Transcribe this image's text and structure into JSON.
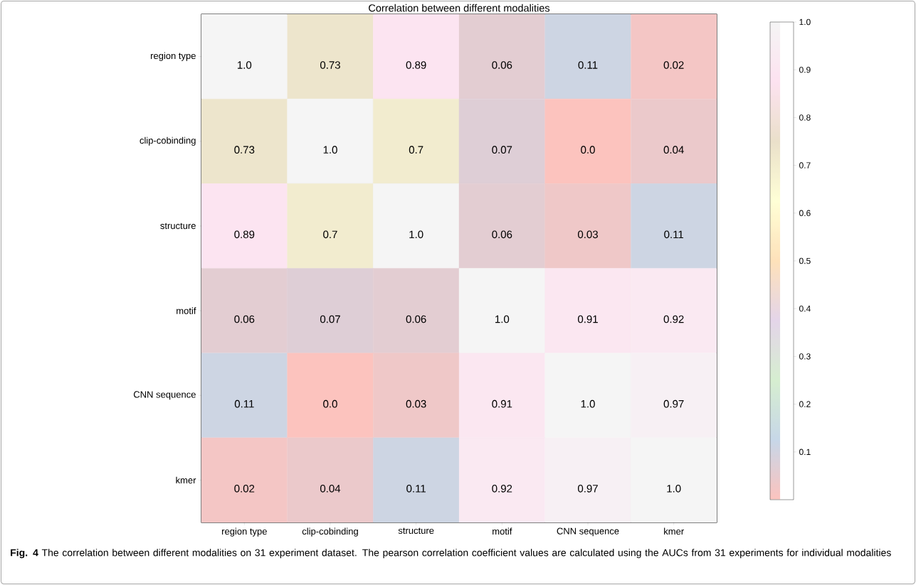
{
  "chart_data": {
    "type": "heatmap",
    "title": "Correlation between different modalities",
    "categories": [
      "region type",
      "clip-cobinding",
      "structure",
      "motif",
      "CNN sequence",
      "kmer"
    ],
    "y_categories": [
      "region type",
      "clip-cobinding",
      "structure",
      "motif",
      "CNN sequence",
      "kmer"
    ],
    "cells": [
      [
        1.0,
        0.73,
        0.89,
        0.06,
        0.11,
        0.02
      ],
      [
        0.73,
        1.0,
        0.7,
        0.07,
        0.0,
        0.04
      ],
      [
        0.89,
        0.7,
        1.0,
        0.06,
        0.03,
        0.11
      ],
      [
        0.06,
        0.07,
        0.06,
        1.0,
        0.91,
        0.92
      ],
      [
        0.11,
        0.0,
        0.03,
        0.91,
        1.0,
        0.97
      ],
      [
        0.02,
        0.04,
        0.11,
        0.92,
        0.97,
        1.0
      ]
    ],
    "cell_labels": [
      [
        "1.0",
        "0.73",
        "0.89",
        "0.06",
        "0.11",
        "0.02"
      ],
      [
        "0.73",
        "1.0",
        "0.7",
        "0.07",
        "0.0",
        "0.04"
      ],
      [
        "0.89",
        "0.7",
        "1.0",
        "0.06",
        "0.03",
        "0.11"
      ],
      [
        "0.06",
        "0.07",
        "0.06",
        "1.0",
        "0.91",
        "0.92"
      ],
      [
        "0.11",
        "0.0",
        "0.03",
        "0.91",
        "1.0",
        "0.97"
      ],
      [
        "0.02",
        "0.04",
        "0.11",
        "0.92",
        "0.97",
        "1.0"
      ]
    ],
    "clim": [
      0,
      1
    ],
    "cticks": [
      0.1,
      0.2,
      0.3,
      0.4,
      0.5,
      0.6,
      0.7,
      0.8,
      0.9,
      {
        "value": 1.0,
        "label": "1.0"
      }
    ],
    "annotations": [
      "**Fig. 4** The correlation between different modalities on 31 experiment dataset. The pearson correlation coefficient values are calculated using the AUCs from 31 experiments for individual modalities"
    ]
  }
}
